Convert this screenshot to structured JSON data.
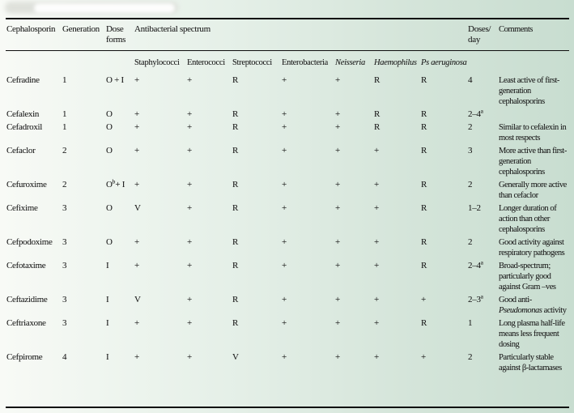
{
  "page": {
    "background_left": "#f8faf6",
    "background_right": "#c8ddd0",
    "rule_color": "#0e0e0e",
    "text_color": "#1d1d1d"
  },
  "table": {
    "columns": {
      "cephalosporin": "Cephalosporin",
      "generation": "Generation",
      "dose_forms_line1": "Dose",
      "dose_forms_line2": "forms",
      "spectrum_group": "Antibacterial spectrum",
      "doses_line1": "Doses/",
      "doses_line2": "day",
      "comments": "Comments"
    },
    "bacteria_columns": [
      {
        "label": "Staphylococci",
        "italic": false
      },
      {
        "label": "Enterococci",
        "italic": false
      },
      {
        "label": "Streptococci",
        "italic": false
      },
      {
        "label": "Enterobacteria",
        "italic": false
      },
      {
        "label": "Neisseria",
        "italic": true
      },
      {
        "label": "Haemophilus",
        "italic": true
      },
      {
        "label": "Ps aeruginosa",
        "italic": true
      }
    ],
    "rows": [
      {
        "name": "Cefradine",
        "generation": "1",
        "dose_forms": [
          {
            "t": "O + I"
          }
        ],
        "spectrum": [
          "+",
          "+",
          "R",
          "+",
          "+",
          "R",
          "R"
        ],
        "doses": [
          {
            "t": "4"
          }
        ],
        "comment": [
          {
            "t": "Least active of first-generation cephalosporins"
          }
        ]
      },
      {
        "name": "Cefalexin",
        "generation": "1",
        "dose_forms": [
          {
            "t": "O"
          }
        ],
        "spectrum": [
          "+",
          "+",
          "R",
          "+",
          "+",
          "R",
          "R"
        ],
        "doses": [
          {
            "t": "2–4"
          },
          {
            "t": "a",
            "sup": true
          }
        ],
        "comment": []
      },
      {
        "name": "Cefadroxil",
        "generation": "1",
        "dose_forms": [
          {
            "t": "O"
          }
        ],
        "spectrum": [
          "+",
          "+",
          "R",
          "+",
          "+",
          "R",
          "R"
        ],
        "doses": [
          {
            "t": "2"
          }
        ],
        "comment": [
          {
            "t": "Similar to cefalexin in most respects"
          }
        ]
      },
      {
        "name": "Cefaclor",
        "generation": "2",
        "dose_forms": [
          {
            "t": "O"
          }
        ],
        "spectrum": [
          "+",
          "+",
          "R",
          "+",
          "+",
          "+",
          "R"
        ],
        "doses": [
          {
            "t": "3"
          }
        ],
        "comment": [
          {
            "t": "More active than first-generation cephalosporins"
          }
        ]
      },
      {
        "name": "Cefuroxime",
        "generation": "2",
        "dose_forms": [
          {
            "t": "O"
          },
          {
            "t": "b",
            "sup": true
          },
          {
            "t": "+ I"
          }
        ],
        "spectrum": [
          "+",
          "+",
          "R",
          "+",
          "+",
          "+",
          "R"
        ],
        "doses": [
          {
            "t": "2"
          }
        ],
        "comment": [
          {
            "t": "Generally more active than cefaclor"
          }
        ]
      },
      {
        "name": "Cefixime",
        "generation": "3",
        "dose_forms": [
          {
            "t": "O"
          }
        ],
        "spectrum": [
          "V",
          "+",
          "R",
          "+",
          "+",
          "+",
          "R"
        ],
        "doses": [
          {
            "t": "1–2"
          }
        ],
        "comment": [
          {
            "t": "Longer duration of action than other cephalosporins"
          }
        ]
      },
      {
        "name": "Cefpodoxime",
        "generation": "3",
        "dose_forms": [
          {
            "t": "O"
          }
        ],
        "spectrum": [
          "+",
          "+",
          "R",
          "+",
          "+",
          "+",
          "R"
        ],
        "doses": [
          {
            "t": "2"
          }
        ],
        "comment": [
          {
            "t": "Good activity against respiratory pathogens"
          }
        ]
      },
      {
        "name": "Cefotaxime",
        "generation": "3",
        "dose_forms": [
          {
            "t": "I"
          }
        ],
        "spectrum": [
          "+",
          "+",
          "R",
          "+",
          "+",
          "+",
          "R"
        ],
        "doses": [
          {
            "t": "2–4"
          },
          {
            "t": "a",
            "sup": true
          }
        ],
        "comment": [
          {
            "t": "Broad-spectrum; particularly good against Gram –ves"
          }
        ]
      },
      {
        "name": "Ceftazidime",
        "generation": "3",
        "dose_forms": [
          {
            "t": "I"
          }
        ],
        "spectrum": [
          "V",
          "+",
          "R",
          "+",
          "+",
          "+",
          "+"
        ],
        "doses": [
          {
            "t": "2–3"
          },
          {
            "t": "a",
            "sup": true
          }
        ],
        "comment": [
          {
            "t": "Good anti-"
          },
          {
            "t": "Pseudomonas",
            "i": true
          },
          {
            "t": " activity"
          }
        ]
      },
      {
        "name": "Ceftriaxone",
        "generation": "3",
        "dose_forms": [
          {
            "t": "I"
          }
        ],
        "spectrum": [
          "+",
          "+",
          "R",
          "+",
          "+",
          "+",
          "R"
        ],
        "doses": [
          {
            "t": "1"
          }
        ],
        "comment": [
          {
            "t": "Long plasma half-life means less frequent dosing"
          }
        ]
      },
      {
        "name": "Cefpirome",
        "generation": "4",
        "dose_forms": [
          {
            "t": "I"
          }
        ],
        "spectrum": [
          "+",
          "+",
          "V",
          "+",
          "+",
          "+",
          "+"
        ],
        "doses": [
          {
            "t": "2"
          }
        ],
        "comment": [
          {
            "t": "Particularly stable against β-lactamases"
          }
        ]
      }
    ]
  }
}
